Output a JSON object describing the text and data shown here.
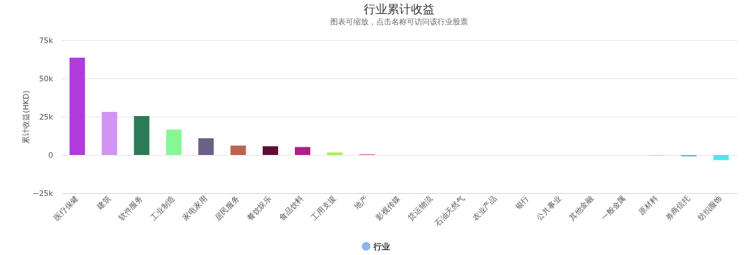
{
  "chart_data": {
    "type": "bar",
    "title": "行业累计收益",
    "subtitle": "图表可缩放，点击名称可访问该行业股票",
    "ylabel": "累计收益(HKD)",
    "categories": [
      "医疗保健",
      "建筑",
      "软件服务",
      "工业制造",
      "家电家用",
      "居民服务",
      "餐饮娱乐",
      "食品饮料",
      "工用支援",
      "地产",
      "影视传媒",
      "货运物流",
      "石油天然气",
      "农业产品",
      "银行",
      "公共事业",
      "其他金融",
      "一般金属",
      "原材料",
      "券商信托",
      "纺织服饰"
    ],
    "series": [
      {
        "name": "行业",
        "color": "#8ab4f0",
        "colors": [
          "#b13bdb",
          "#cf94f2",
          "#2b7b56",
          "#86f794",
          "#6a6184",
          "#ba644f",
          "#600d33",
          "#ab2188",
          "#a7ef4f",
          "#d85bc0",
          "#e0e0e0",
          "#e0e0e0",
          "#e0e0e0",
          "#e0e0e0",
          "#e0e0e0",
          "#e0e0e0",
          "#e0e0e0",
          "#e0e0e0",
          "#c9dc2c",
          "#4bc8dc",
          "#55e2ef"
        ],
        "values": [
          63600,
          28200,
          25500,
          16600,
          10900,
          6100,
          5700,
          5200,
          1600,
          500,
          0,
          0,
          0,
          0,
          0,
          0,
          0,
          0,
          -400,
          -1000,
          -3400
        ]
      }
    ],
    "ylim": [
      -25000,
      75000
    ],
    "yticks": [
      {
        "value": -25000,
        "label": "−25k"
      },
      {
        "value": 0,
        "label": "0"
      },
      {
        "value": 25000,
        "label": "25k"
      },
      {
        "value": 50000,
        "label": "50k"
      },
      {
        "value": 75000,
        "label": "75k"
      }
    ],
    "grid": "y",
    "legend": "bottom"
  }
}
